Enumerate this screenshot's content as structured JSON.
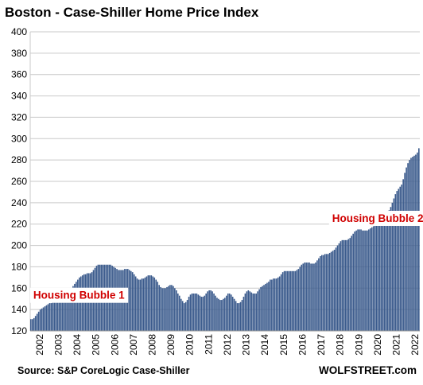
{
  "chart_data": {
    "type": "bar",
    "title": "Boston - Case-Shiller Home Price Index",
    "xlabel": "",
    "ylabel": "",
    "ylim": [
      120,
      400
    ],
    "yticks": [
      120,
      140,
      160,
      180,
      200,
      220,
      240,
      260,
      280,
      300,
      320,
      340,
      360,
      380,
      400
    ],
    "xticks": [
      "2002",
      "2003",
      "2004",
      "2005",
      "2006",
      "2007",
      "2008",
      "2009",
      "2010",
      "2011",
      "2012",
      "2013",
      "2014",
      "2015",
      "2016",
      "2017",
      "2018",
      "2019",
      "2020",
      "2021",
      "2022"
    ],
    "grid": true,
    "bar_color": "#3a5a8c",
    "frequency": "monthly",
    "start": "2002-01",
    "series": [
      {
        "values": [
          131,
          131,
          132,
          134,
          136,
          138,
          140,
          141,
          142,
          143,
          144,
          145,
          146,
          146,
          147,
          149,
          151,
          153,
          155,
          156,
          157,
          158,
          158,
          158,
          159,
          159,
          160,
          162,
          164,
          166,
          168,
          170,
          171,
          172,
          173,
          173,
          174,
          174,
          174,
          175,
          177,
          179,
          181,
          182,
          182,
          182,
          182,
          182,
          182,
          182,
          182,
          182,
          181,
          180,
          179,
          178,
          177,
          177,
          177,
          177,
          178,
          178,
          178,
          177,
          176,
          175,
          173,
          171,
          169,
          168,
          168,
          169,
          169,
          170,
          171,
          172,
          172,
          172,
          171,
          170,
          168,
          166,
          163,
          161,
          160,
          160,
          160,
          161,
          162,
          163,
          163,
          162,
          160,
          158,
          155,
          153,
          150,
          148,
          146,
          147,
          149,
          152,
          154,
          155,
          155,
          155,
          155,
          154,
          153,
          152,
          152,
          153,
          155,
          157,
          158,
          158,
          157,
          155,
          153,
          151,
          150,
          149,
          149,
          150,
          151,
          153,
          155,
          155,
          154,
          152,
          150,
          148,
          146,
          146,
          147,
          149,
          152,
          155,
          157,
          158,
          157,
          156,
          155,
          155,
          155,
          157,
          159,
          161,
          162,
          163,
          164,
          165,
          166,
          168,
          168,
          169,
          169,
          169,
          170,
          171,
          173,
          175,
          176,
          176,
          176,
          176,
          176,
          176,
          176,
          176,
          177,
          178,
          180,
          182,
          183,
          184,
          184,
          184,
          184,
          183,
          183,
          183,
          184,
          186,
          188,
          190,
          191,
          191,
          192,
          192,
          192,
          193,
          194,
          195,
          196,
          198,
          200,
          202,
          204,
          205,
          205,
          205,
          205,
          206,
          207,
          209,
          211,
          213,
          214,
          215,
          215,
          215,
          214,
          214,
          214,
          214,
          215,
          216,
          217,
          218,
          219,
          220,
          221,
          222,
          223,
          225,
          227,
          229,
          231,
          233,
          236,
          240,
          244,
          248,
          251,
          253,
          255,
          257,
          262,
          268,
          273,
          277,
          280,
          282,
          283,
          284,
          285,
          287,
          291
        ]
      }
    ]
  },
  "annotations": [
    {
      "text": "Housing Bubble 1",
      "x": "2002-03",
      "y": 150
    },
    {
      "text": "Housing Bubble 2",
      "x": "2018-02",
      "y": 222
    }
  ],
  "footer": {
    "source": "Source: S&P CoreLogic Case-Shiller",
    "brand": "WOLFSTREET.com"
  }
}
